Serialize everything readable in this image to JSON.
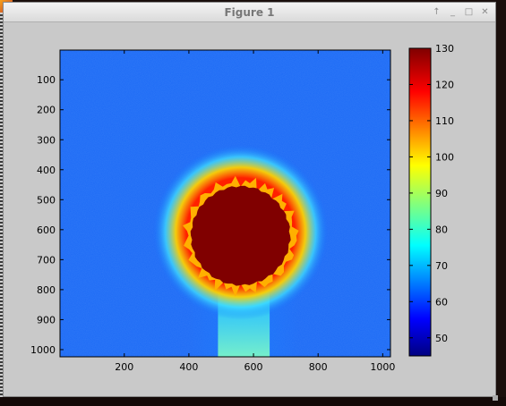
{
  "window": {
    "title": "Figure 1",
    "controls": {
      "pin": "↑",
      "minimize": "_",
      "maximize": "□",
      "close": "✕"
    }
  },
  "chart_data": {
    "type": "heatmap",
    "title": "",
    "xlabel": "",
    "ylabel": "",
    "xlim": [
      1,
      1024
    ],
    "ylim": [
      1024,
      1
    ],
    "x_ticks": [
      200,
      400,
      600,
      800,
      1000
    ],
    "y_ticks": [
      100,
      200,
      300,
      400,
      500,
      600,
      700,
      800,
      900,
      1000
    ],
    "colorbar": {
      "range": [
        45,
        130
      ],
      "ticks": [
        50,
        60,
        70,
        80,
        90,
        100,
        110,
        120,
        130
      ],
      "colormap": "jet"
    },
    "features": [
      {
        "name": "saturated disk",
        "center_x": 560,
        "center_y": 620,
        "radius": 155,
        "value": 130
      },
      {
        "name": "plume",
        "x_from": 490,
        "x_to": 650,
        "y_from": 760,
        "y_to": 1024,
        "value": 72
      },
      {
        "name": "background",
        "value": 60
      }
    ]
  }
}
